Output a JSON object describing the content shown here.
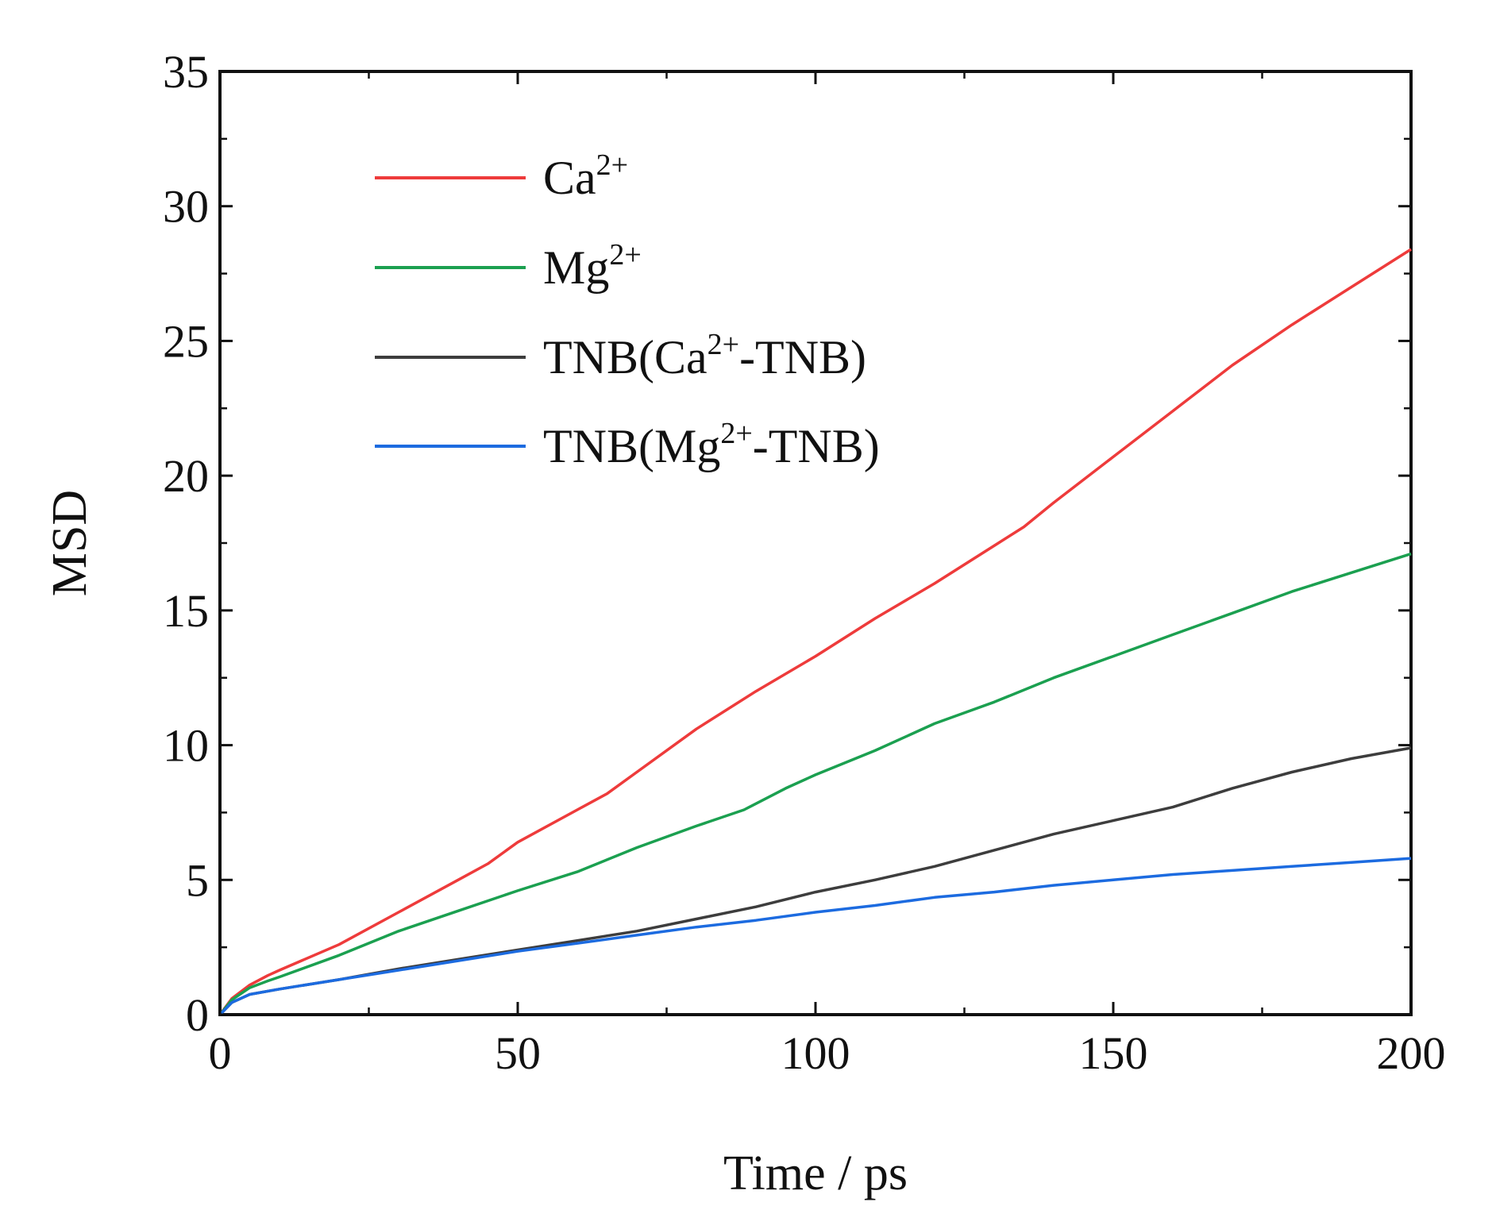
{
  "chart_data": {
    "type": "line",
    "title": "",
    "xlabel": "Time / ps",
    "ylabel": "MSD",
    "xlim": [
      0,
      200
    ],
    "ylim": [
      0,
      35
    ],
    "xticks": [
      0,
      50,
      100,
      150,
      200
    ],
    "yticks": [
      0,
      5,
      10,
      15,
      20,
      25,
      30,
      35
    ],
    "xtick_labels": [
      "0",
      "50",
      "100",
      "150",
      "200"
    ],
    "ytick_labels": [
      "0",
      "5",
      "10",
      "15",
      "20",
      "25",
      "30",
      "35"
    ],
    "grid": false,
    "legend_position": "top-left",
    "series": [
      {
        "name": "Ca2+",
        "legend": {
          "pre": "Ca",
          "sup": "2+",
          "post": ""
        },
        "color": "#ee3b3b",
        "x": [
          0,
          2,
          5,
          8,
          10,
          20,
          30,
          40,
          45,
          50,
          60,
          65,
          70,
          80,
          90,
          100,
          110,
          120,
          130,
          135,
          140,
          150,
          160,
          170,
          180,
          190,
          200
        ],
        "y": [
          0,
          0.6,
          1.1,
          1.45,
          1.65,
          2.6,
          3.8,
          5.0,
          5.6,
          6.4,
          7.6,
          8.2,
          9.0,
          10.6,
          12.0,
          13.3,
          14.7,
          16.0,
          17.4,
          18.1,
          19.0,
          20.7,
          22.4,
          24.1,
          25.6,
          27.0,
          28.4
        ]
      },
      {
        "name": "Mg2+",
        "legend": {
          "pre": "Mg",
          "sup": "2+",
          "post": ""
        },
        "color": "#1ba050",
        "x": [
          0,
          2,
          5,
          8,
          10,
          20,
          30,
          40,
          50,
          60,
          70,
          80,
          88,
          95,
          100,
          110,
          120,
          130,
          140,
          150,
          160,
          170,
          180,
          190,
          200
        ],
        "y": [
          0,
          0.55,
          1.0,
          1.25,
          1.4,
          2.2,
          3.1,
          3.85,
          4.6,
          5.3,
          6.2,
          7.0,
          7.6,
          8.4,
          8.9,
          9.8,
          10.8,
          11.6,
          12.5,
          13.3,
          14.1,
          14.9,
          15.7,
          16.4,
          17.1
        ]
      },
      {
        "name": "TNB(Ca2+-TNB)",
        "legend": {
          "pre": "TNB(Ca",
          "sup": "2+",
          "post": "-TNB)"
        },
        "color": "#3d3d3d",
        "x": [
          0,
          2,
          5,
          10,
          20,
          30,
          40,
          50,
          60,
          70,
          80,
          90,
          100,
          110,
          120,
          130,
          140,
          150,
          160,
          170,
          180,
          190,
          200
        ],
        "y": [
          0,
          0.45,
          0.75,
          0.95,
          1.3,
          1.7,
          2.05,
          2.4,
          2.75,
          3.1,
          3.55,
          4.0,
          4.55,
          5.0,
          5.5,
          6.1,
          6.7,
          7.2,
          7.7,
          8.4,
          9.0,
          9.5,
          9.9
        ]
      },
      {
        "name": "TNB(Mg2+-TNB)",
        "legend": {
          "pre": "TNB(Mg",
          "sup": "2+",
          "post": "-TNB)"
        },
        "color": "#1c6be0",
        "x": [
          0,
          2,
          5,
          10,
          20,
          30,
          40,
          50,
          60,
          70,
          80,
          90,
          100,
          110,
          120,
          130,
          140,
          150,
          160,
          170,
          180,
          190,
          200
        ],
        "y": [
          0,
          0.45,
          0.75,
          0.95,
          1.3,
          1.65,
          2.0,
          2.35,
          2.65,
          2.95,
          3.25,
          3.5,
          3.8,
          4.05,
          4.35,
          4.55,
          4.8,
          5.0,
          5.2,
          5.35,
          5.5,
          5.65,
          5.8
        ]
      }
    ]
  }
}
